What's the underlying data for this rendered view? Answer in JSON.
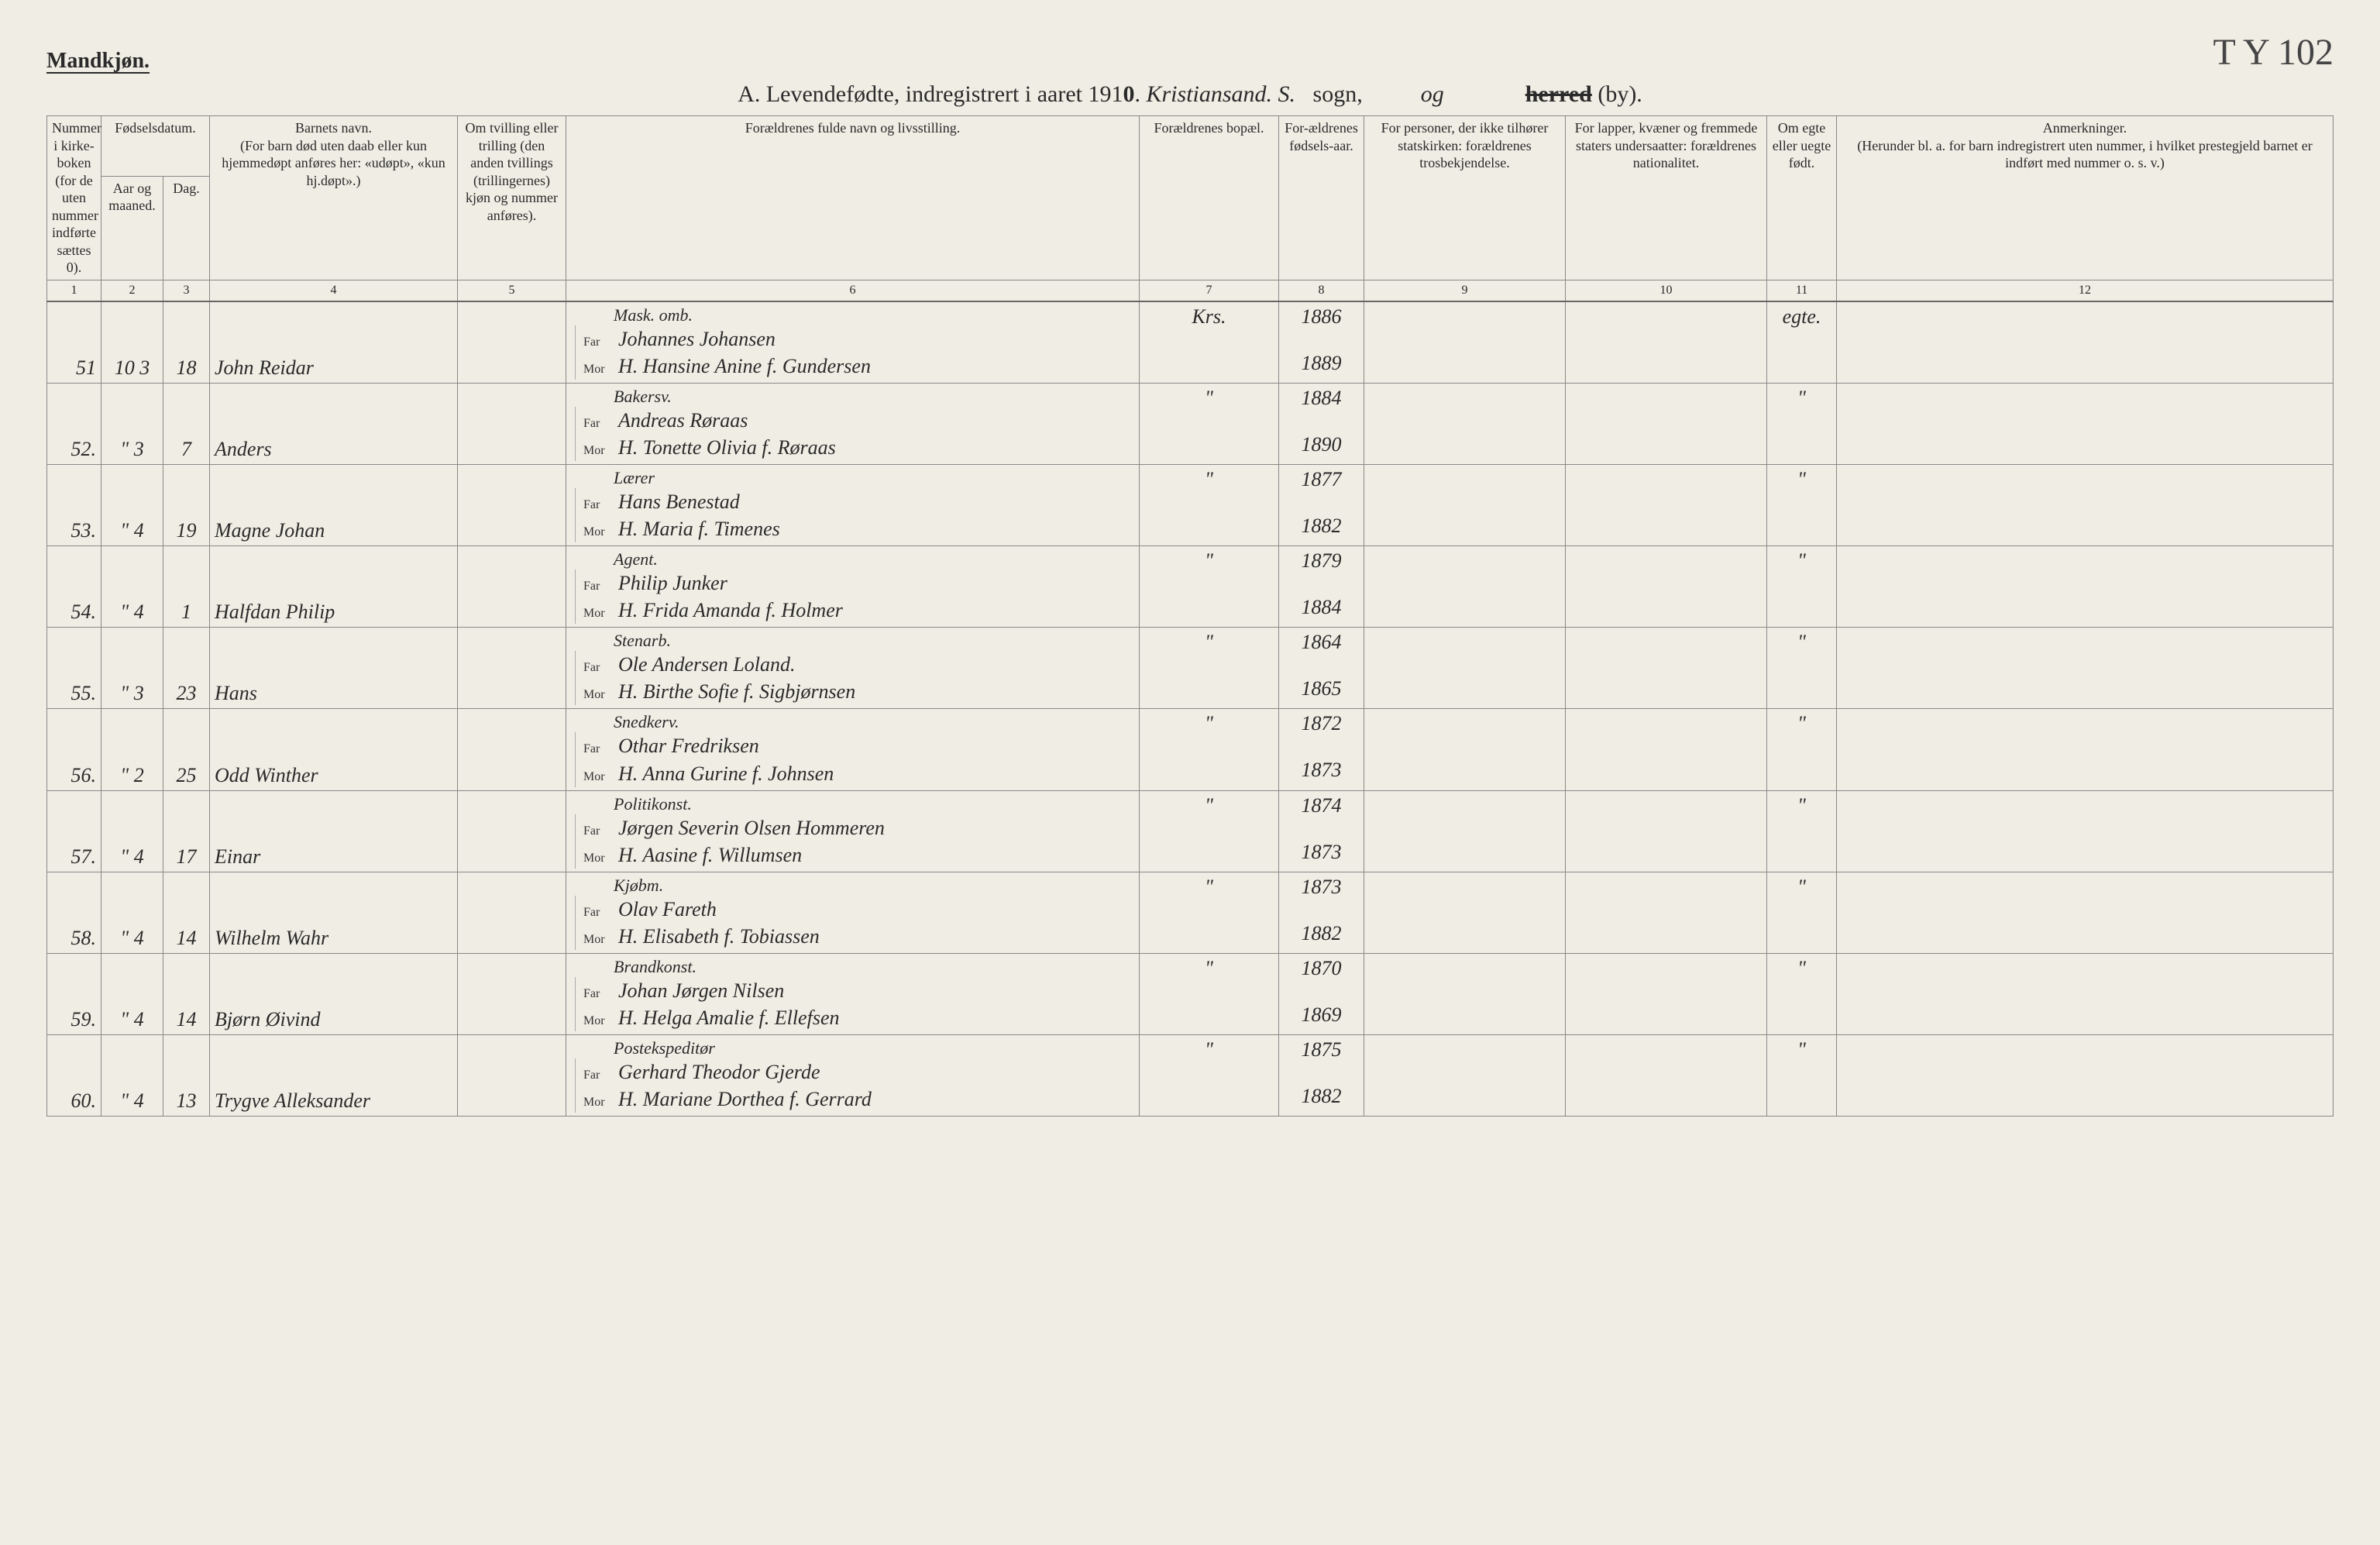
{
  "header": {
    "mandkjon": "Mandkjøn.",
    "hand_annotation": "T Y 102",
    "title_prefix": "A.  Levendefødte, indregistrert i aaret 191",
    "year_digit": "0",
    "parish_hand": "Kristiansand. S.",
    "sogn": "sogn,",
    "og": "og",
    "herred_strike": "herred",
    "by": "(by)."
  },
  "columns": {
    "h1": "Nummer i kirke-boken (for de uten nummer indførte sættes 0).",
    "h2a": "Fødselsdatum.",
    "h2b_aar": "Aar og maaned.",
    "h2b_dag": "Dag.",
    "h4": "Barnets navn.\n(For barn død uten daab eller kun hjemmedøpt anføres her: «udøpt», «kun hj.døpt».)",
    "h5": "Om tvilling eller trilling (den anden tvillings (trillingernes) kjøn og nummer anføres).",
    "h6": "Forældrenes fulde navn og livsstilling.",
    "h7": "Forældrenes bopæl.",
    "h8": "For-ældrenes fødsels-aar.",
    "h9": "For personer, der ikke tilhører statskirken: forældrenes trosbekjendelse.",
    "h10": "For lapper, kvæner og fremmede staters undersaatter: forældrenes nationalitet.",
    "h11": "Om egte eller uegte født.",
    "h12": "Anmerkninger.\n(Herunder bl. a. for barn indregistrert uten nummer, i hvilket prestegjeld barnet er indført med nummer o. s. v.)",
    "nums": [
      "1",
      "2",
      "3",
      "4",
      "5",
      "6",
      "7",
      "8",
      "9",
      "10",
      "11",
      "12"
    ]
  },
  "labels": {
    "far": "Far",
    "mor": "Mor"
  },
  "rows": [
    {
      "num": "51",
      "ym": "10   3",
      "day": "18",
      "child": "John Reidar",
      "occ": "Mask. omb.",
      "far": "Johannes Johansen",
      "mor": "H. Hansine Anine f. Gundersen",
      "bopel": "Krs.",
      "year_far": "1886",
      "year_mor": "1889",
      "egte": "egte."
    },
    {
      "num": "52.",
      "ym": "\"   3",
      "day": "7",
      "child": "Anders",
      "occ": "Bakersv.",
      "far": "Andreas Røraas",
      "mor": "H. Tonette Olivia f. Røraas",
      "bopel": "\"",
      "year_far": "1884",
      "year_mor": "1890",
      "egte": "\""
    },
    {
      "num": "53.",
      "ym": "\"   4",
      "day": "19",
      "child": "Magne Johan",
      "occ": "Lærer",
      "far": "Hans Benestad",
      "mor": "H. Maria f. Timenes",
      "bopel": "\"",
      "year_far": "1877",
      "year_mor": "1882",
      "egte": "\""
    },
    {
      "num": "54.",
      "ym": "\"   4",
      "day": "1",
      "child": "Halfdan Philip",
      "occ": "Agent.",
      "far": "Philip Junker",
      "mor": "H. Frida Amanda f. Holmer",
      "bopel": "\"",
      "year_far": "1879",
      "year_mor": "1884",
      "egte": "\""
    },
    {
      "num": "55.",
      "ym": "\"   3",
      "day": "23",
      "child": "Hans",
      "occ": "Stenarb.",
      "far": "Ole Andersen Loland.",
      "mor": "H. Birthe Sofie f. Sigbjørnsen",
      "bopel": "\"",
      "year_far": "1864",
      "year_mor": "1865",
      "egte": "\""
    },
    {
      "num": "56.",
      "ym": "\"   2",
      "day": "25",
      "child": "Odd Winther",
      "occ": "Snedkerv.",
      "far": "Othar Fredriksen",
      "mor": "H. Anna Gurine f. Johnsen",
      "bopel": "\"",
      "year_far": "1872",
      "year_mor": "1873",
      "egte": "\""
    },
    {
      "num": "57.",
      "ym": "\"   4",
      "day": "17",
      "child": "Einar",
      "occ": "Politikonst.",
      "far": "Jørgen Severin Olsen Hommeren",
      "mor": "H. Aasine f. Willumsen",
      "bopel": "\"",
      "year_far": "1874",
      "year_mor": "1873",
      "egte": "\""
    },
    {
      "num": "58.",
      "ym": "\"   4",
      "day": "14",
      "child": "Wilhelm Wahr",
      "occ": "Kjøbm.",
      "far": "Olav Fareth",
      "mor": "H. Elisabeth f. Tobiassen",
      "bopel": "\"",
      "year_far": "1873",
      "year_mor": "1882",
      "egte": "\""
    },
    {
      "num": "59.",
      "ym": "\"   4",
      "day": "14",
      "child": "Bjørn Øivind",
      "occ": "Brandkonst.",
      "far": "Johan Jørgen Nilsen",
      "mor": "H. Helga Amalie f. Ellefsen",
      "bopel": "\"",
      "year_far": "1870",
      "year_mor": "1869",
      "egte": "\""
    },
    {
      "num": "60.",
      "ym": "\"   4",
      "day": "13",
      "child": "Trygve Alleksander",
      "occ": "Postekspeditør",
      "far": "Gerhard Theodor Gjerde",
      "mor": "H. Mariane Dorthea f. Gerrard",
      "bopel": "\"",
      "year_far": "1875",
      "year_mor": "1882",
      "egte": "\""
    }
  ]
}
